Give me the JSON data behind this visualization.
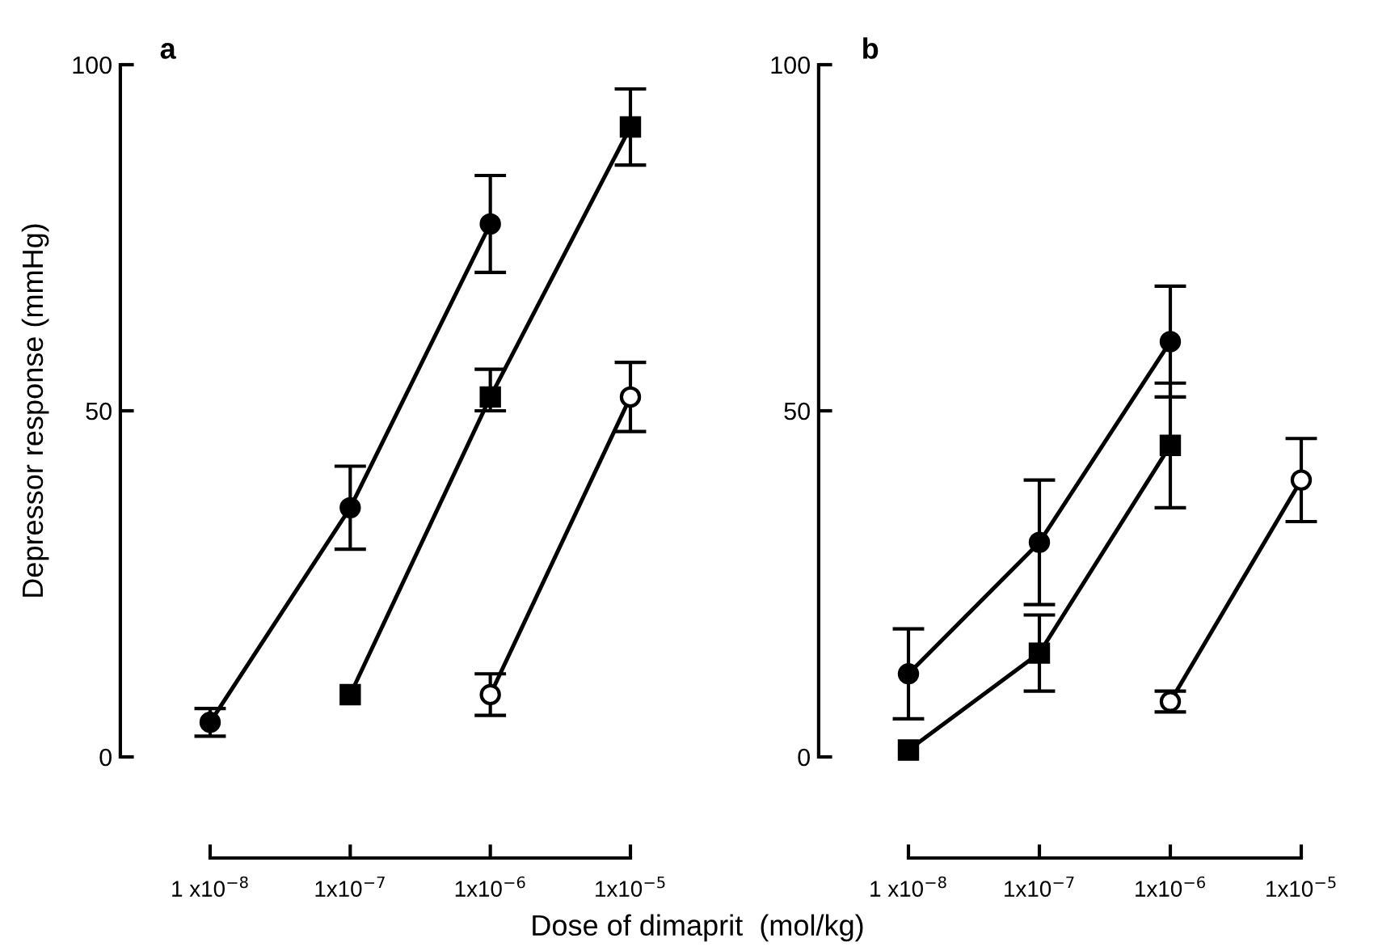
{
  "chart_data": [
    {
      "type": "line",
      "title": "a",
      "ylabel": "Depressor response (mmHg)",
      "xlabel": "Dose of dimaprit  (mol/kg)",
      "log": "x",
      "xlim": [
        1e-08,
        1e-05
      ],
      "ylim": [
        0,
        100
      ],
      "yticks": [
        0,
        50,
        100
      ],
      "xticks": [
        {
          "value": 1e-08,
          "label": "1 x10$^{−8}$"
        },
        {
          "value": 1e-07,
          "label": "1x10$^{−7}$"
        },
        {
          "value": 1e-06,
          "label": "1x10$^{−6}$"
        },
        {
          "value": 1e-05,
          "label": "1x10$^{−5}$"
        }
      ],
      "grid": false,
      "line_style": "solid",
      "series": [
        {
          "color": "#000000",
          "marker": "circle",
          "x": [
            1e-08,
            1e-07,
            1e-06
          ],
          "values": [
            5,
            36,
            77
          ],
          "errors": [
            2,
            6,
            7
          ]
        },
        {
          "color": "#000000",
          "marker": "square",
          "x": [
            1e-07,
            1e-06,
            1e-05
          ],
          "values": [
            9,
            52,
            91
          ],
          "errors": [
            null,
            [
              50,
              56
            ],
            5.5
          ]
        },
        {
          "color": "#000000",
          "marker": "circle",
          "colors": [
            "#ffffff",
            "#ffffff"
          ],
          "x": [
            1e-06,
            1e-05
          ],
          "values": [
            9,
            52
          ],
          "errors": [
            3,
            5
          ]
        }
      ]
    },
    {
      "type": "line",
      "title": "b",
      "log": "x",
      "xlim": [
        1e-08,
        1e-05
      ],
      "ylim": [
        0,
        100
      ],
      "yticks": [
        0,
        50,
        100
      ],
      "xticks": [
        {
          "value": 1e-08,
          "label": "1 x10$^{−8}$"
        },
        {
          "value": 1e-07,
          "label": "1x10$^{−7}$"
        },
        {
          "value": 1e-06,
          "label": "1x10$^{−6}$"
        },
        {
          "value": 1e-05,
          "label": "1x10$^{−5}$"
        }
      ],
      "grid": false,
      "line_style": "solid",
      "series": [
        {
          "color": "#000000",
          "marker": "circle",
          "x": [
            1e-08,
            1e-07,
            1e-06
          ],
          "values": [
            12,
            31,
            60
          ],
          "errors": [
            6.5,
            9,
            8
          ]
        },
        {
          "color": "#000000",
          "marker": "square",
          "x": [
            1e-08,
            1e-07,
            1e-06
          ],
          "values": [
            1,
            15,
            45
          ],
          "errors": [
            null,
            5.5,
            9
          ]
        },
        {
          "color": "#000000",
          "marker": "circle",
          "colors": [
            "#ffffff",
            "#ffffff"
          ],
          "x": [
            1e-06,
            1e-05
          ],
          "values": [
            8,
            40
          ],
          "errors": [
            1.5,
            6
          ]
        }
      ]
    }
  ]
}
